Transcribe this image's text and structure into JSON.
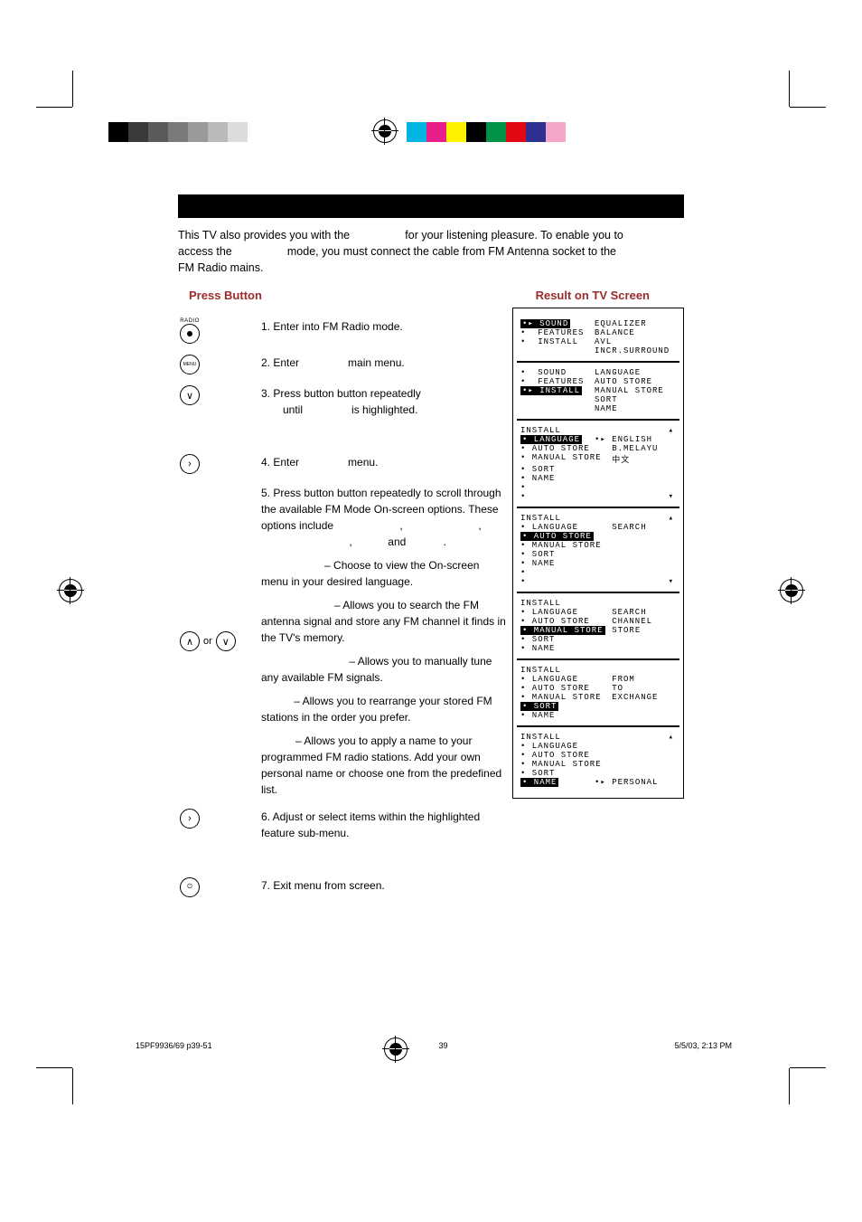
{
  "swatches_left": [
    "#000000",
    "#3a3a3a",
    "#5a5a5a",
    "#7a7a7a",
    "#9a9a9a",
    "#bababa",
    "#dcdcdc",
    "#ffffff"
  ],
  "swatches_right": [
    "#00b5e2",
    "#e81f8b",
    "#fff200",
    "#000000",
    "#009247",
    "#e30613",
    "#2e3192",
    "#f4a6c9",
    "#ffffff"
  ],
  "intro": {
    "l1a": "This TV also provides you with the ",
    "l1b": " for your listening pleasure. To enable you to",
    "l2a": "access the ",
    "l2b": " mode,  you must connect the cable from  FM Antenna socket to the",
    "l3": "FM Radio mains."
  },
  "headers": {
    "left": "Press Button",
    "right": "Result on TV Screen"
  },
  "steps": {
    "s1": "1. Enter into FM Radio mode.",
    "s2a": "2. Enter ",
    "s2b": " main menu.",
    "s3a": "3. Press button button repeatedly",
    "s3b": "until ",
    "s3c": " is highlighted.",
    "or": " or ",
    "s4a": "4. Enter ",
    "s4b": " menu.",
    "s5a": "5. Press button button repeatedly to scroll through the available FM Mode On-screen options. These options include ",
    "s5comma1": " , ",
    "s5comma2": " ,",
    "s5and": " and ",
    "s5period": " .",
    "lang": " – Choose to view the On-screen menu in your desired language.",
    "auto": " – Allows you to search the FM antenna signal and store any FM channel it finds in the TV's memory.",
    "manual": " – Allows you to manually tune any available FM signals.",
    "sort": " – Allows you to rearrange your stored FM stations in the order you prefer.",
    "name": " – Allows you to apply a name to your programmed FM radio stations. Add your own personal name or choose one from the predefined list.",
    "s6": "6. Adjust or select items within the highlighted feature sub-menu.",
    "s7": "7. Exit menu from screen."
  },
  "btn_labels": {
    "radio_top": "RADIO",
    "menu": "MENU"
  },
  "osd": {
    "screen1": {
      "left": [
        "SOUND",
        "FEATURES",
        "INSTALL"
      ],
      "right": [
        "EQUALIZER",
        "BALANCE",
        "AVL",
        "INCR.SURROUND"
      ],
      "highlight": 0
    },
    "screen2": {
      "left": [
        "SOUND",
        "FEATURES",
        "INSTALL"
      ],
      "right": [
        "LANGUAGE",
        "AUTO STORE",
        "MANUAL STORE",
        "SORT",
        "NAME"
      ],
      "highlight": 2
    },
    "screen3": {
      "title": "INSTALL",
      "left": [
        "LANGUAGE",
        "AUTO STORE",
        "MANUAL STORE",
        "SORT",
        "NAME",
        ""
      ],
      "right": [
        "ENGLISH",
        "B.MELAYU",
        "中文"
      ],
      "highlight": 0,
      "arrows": true
    },
    "screen4": {
      "title": "INSTALL",
      "left": [
        "LANGUAGE",
        "AUTO STORE",
        "MANUAL STORE",
        "SORT",
        "NAME",
        ""
      ],
      "right": [
        "SEARCH"
      ],
      "highlight": 1,
      "arrows": true
    },
    "screen5": {
      "title": "INSTALL",
      "left": [
        "LANGUAGE",
        "AUTO STORE",
        "MANUAL STORE",
        "SORT",
        "NAME"
      ],
      "right": [
        "SEARCH",
        "CHANNEL",
        "STORE"
      ],
      "highlight": 2
    },
    "screen6": {
      "title": "INSTALL",
      "left": [
        "LANGUAGE",
        "AUTO STORE",
        "MANUAL STORE",
        "SORT",
        "NAME"
      ],
      "right": [
        "FROM",
        "TO",
        "EXCHANGE"
      ],
      "highlight": 3
    },
    "screen7": {
      "title": "INSTALL",
      "left": [
        "LANGUAGE",
        "AUTO STORE",
        "MANUAL STORE",
        "SORT",
        "NAME"
      ],
      "right": [
        "PERSONAL"
      ],
      "right_at": 4,
      "highlight": 4,
      "top_arrow": true
    }
  },
  "footer": {
    "file": "15PF9936/69 p39-51",
    "page": "39",
    "date": "5/5/03, 2:13 PM"
  }
}
